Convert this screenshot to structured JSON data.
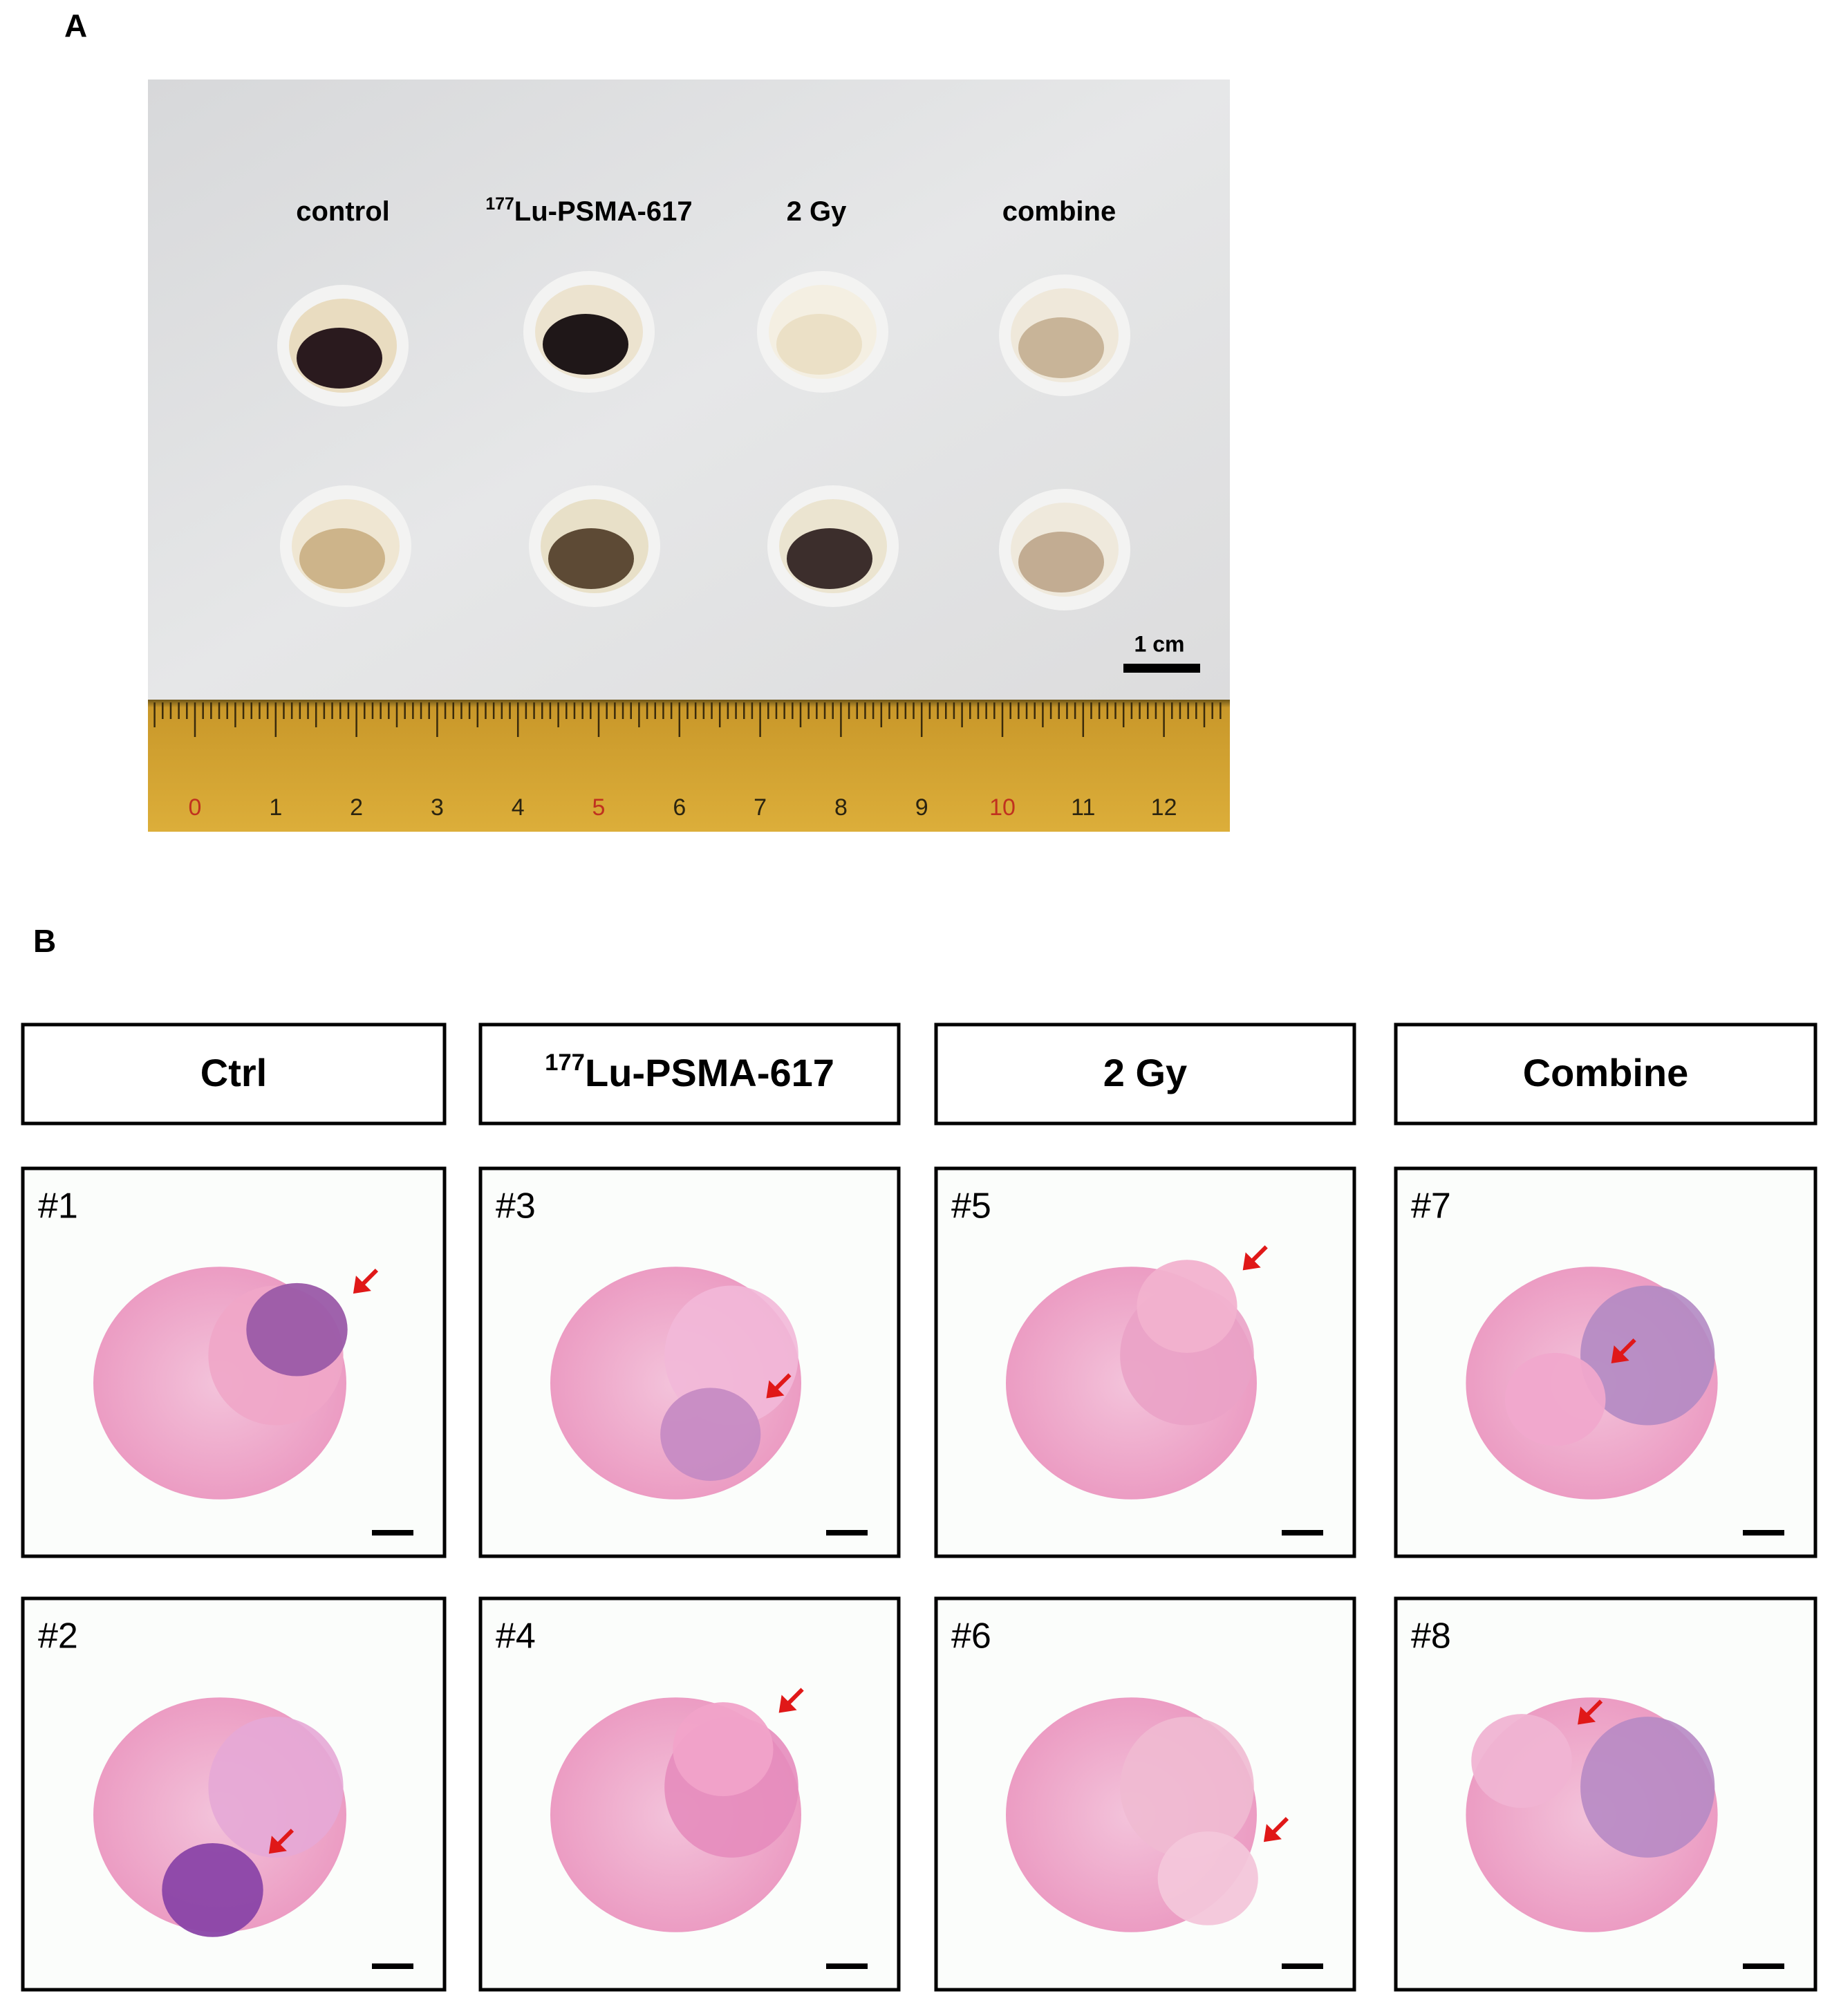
{
  "panel_a": {
    "label": "A",
    "groups": [
      {
        "name": "control"
      },
      {
        "sup": "177",
        "name": "Lu-PSMA-617"
      },
      {
        "name": "2 Gy"
      },
      {
        "name": "combine"
      }
    ],
    "scale_bar": "1 cm",
    "ruler_numbers": [
      "0",
      "1",
      "2",
      "3",
      "4",
      "5",
      "6",
      "7",
      "8",
      "9",
      "10",
      "11",
      "12"
    ]
  },
  "panel_b": {
    "label": "B",
    "headers": [
      {
        "name": "Ctrl"
      },
      {
        "sup": "177",
        "name": "Lu-PSMA-617"
      },
      {
        "name": "2 Gy"
      },
      {
        "name": "Combine"
      }
    ],
    "samples": [
      [
        "#1",
        "#2"
      ],
      [
        "#3",
        "#4"
      ],
      [
        "#5",
        "#6"
      ],
      [
        "#7",
        "#8"
      ]
    ]
  }
}
